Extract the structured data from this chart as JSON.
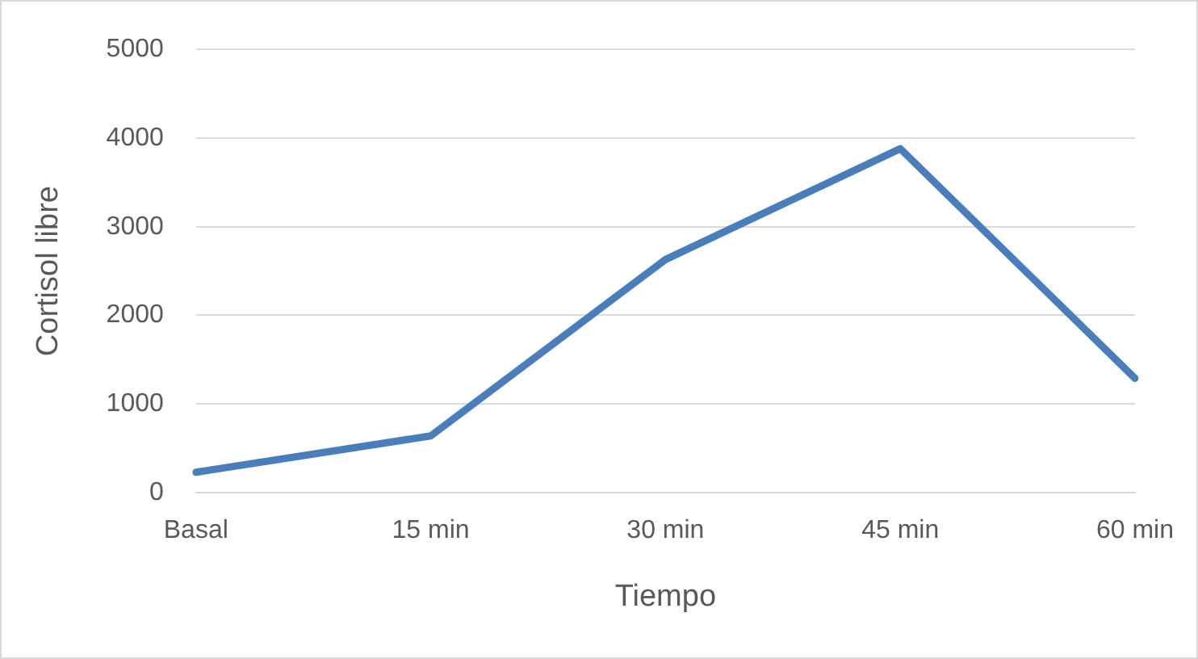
{
  "chart_data": {
    "type": "line",
    "xlabel": "Tiempo",
    "ylabel": "Cortisol libre",
    "categories": [
      "Basal",
      "15 min",
      "30 min",
      "45 min",
      "60 min"
    ],
    "series": [
      {
        "color": "#4a7ebb",
        "values": [
          230,
          640,
          2630,
          3880,
          1290
        ]
      }
    ],
    "ylim": [
      0,
      5000
    ],
    "yticks": [
      0,
      1000,
      2000,
      3000,
      4000,
      5000
    ],
    "grid": "y",
    "legend": false,
    "marker": "none",
    "line_style": "solid"
  }
}
